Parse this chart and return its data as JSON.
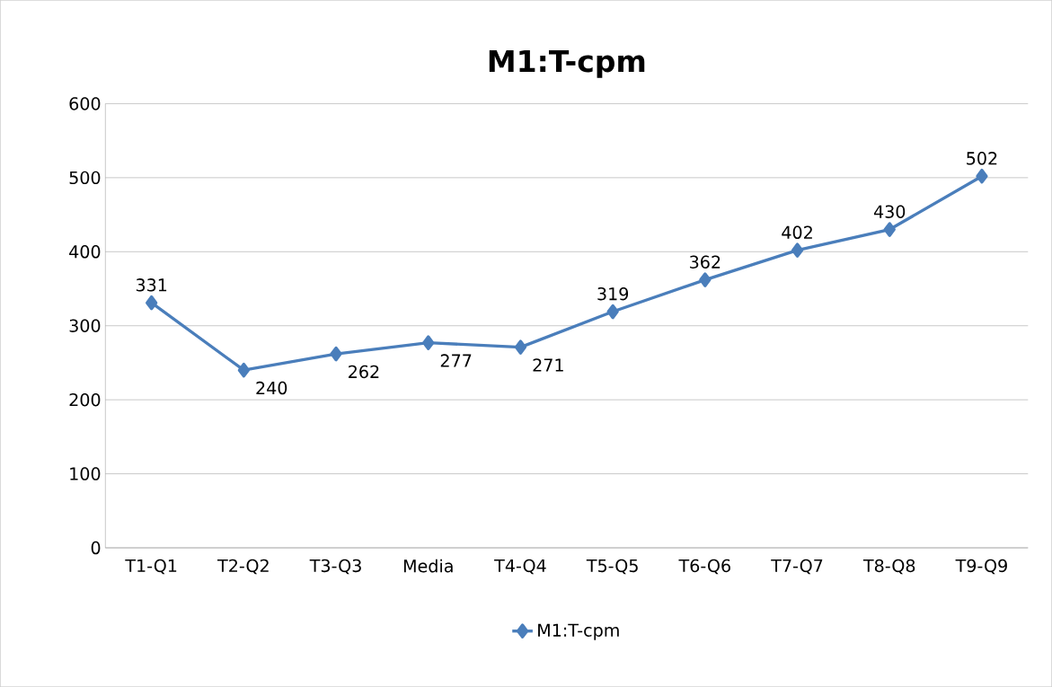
{
  "chart_data": {
    "type": "line",
    "title": "M1:T-cpm",
    "categories": [
      "T1-Q1",
      "T2-Q2",
      "T3-Q3",
      "Media",
      "T4-Q4",
      "T5-Q5",
      "T6-Q6",
      "T7-Q7",
      "T8-Q8",
      "T9-Q9"
    ],
    "series": [
      {
        "name": "M1:T-cpm",
        "color": "#4a7ebb",
        "values": [
          331,
          240,
          262,
          277,
          271,
          319,
          362,
          402,
          430,
          502
        ]
      }
    ],
    "ylim": [
      0,
      600
    ],
    "yticks": [
      0,
      100,
      200,
      300,
      400,
      500,
      600
    ],
    "grid": "y",
    "legend": "bottom",
    "marker": "diamond",
    "line_style": "solid",
    "data_labels": true
  }
}
